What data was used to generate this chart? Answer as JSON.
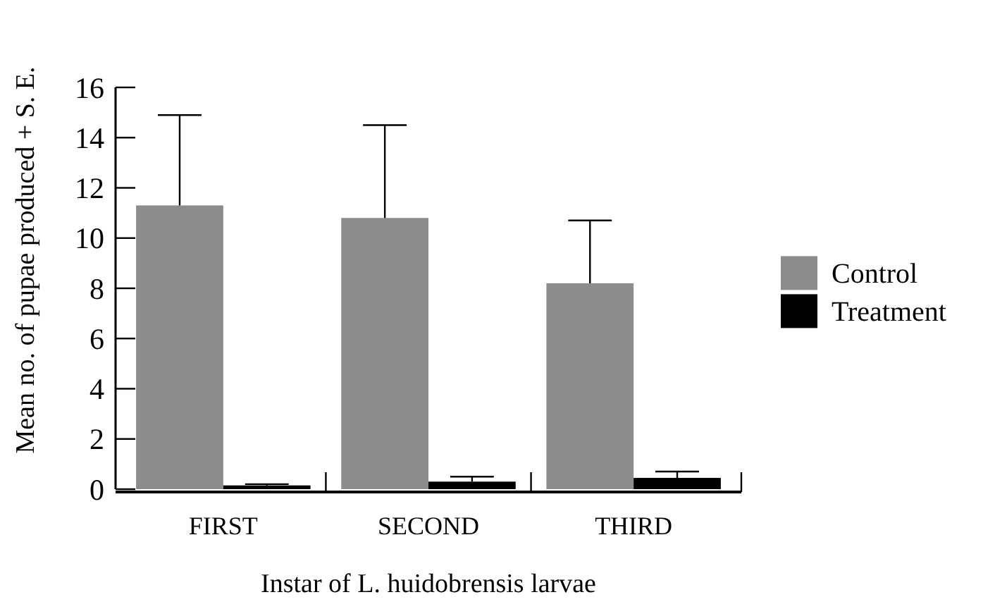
{
  "chart_data": {
    "type": "bar",
    "ylabel": "Mean no. of pupae produced + S. E.",
    "xlabel": "Instar of L. huidobrensis larvae",
    "categories": [
      "FIRST",
      "SECOND",
      "THIRD"
    ],
    "series": [
      {
        "name": "Control",
        "color": "#8c8c8c",
        "values": [
          11.3,
          10.8,
          8.2
        ],
        "errors": [
          [
            11.3,
            14.9
          ],
          [
            10.8,
            14.5
          ],
          [
            8.2,
            10.7
          ]
        ]
      },
      {
        "name": "Treatment",
        "color": "#000000",
        "values": [
          0.15,
          0.3,
          0.45
        ],
        "errors": [
          [
            0.15,
            0.2
          ],
          [
            0.3,
            0.5
          ],
          [
            0.45,
            0.7
          ]
        ]
      }
    ],
    "ylim": [
      0,
      16
    ],
    "yticks": [
      0,
      2,
      4,
      6,
      8,
      10,
      12,
      14,
      16
    ],
    "grid": false,
    "legend": "right"
  }
}
